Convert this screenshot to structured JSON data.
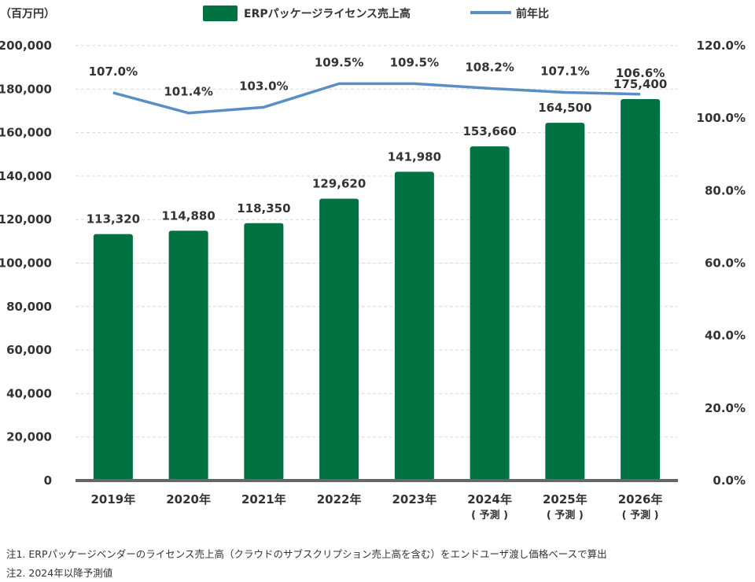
{
  "chart_data": {
    "type": "bar",
    "y_unit_label": "（百万円）",
    "categories": [
      "2019年",
      "2020年",
      "2021年",
      "2022年",
      "2023年",
      "2024年",
      "2025年",
      "2026年"
    ],
    "category_sublabels": [
      "",
      "",
      "",
      "",
      "",
      "( 予測 )",
      "( 予測 )",
      "( 予測 )"
    ],
    "series": [
      {
        "name": "ERPパッケージライセンス売上高",
        "type": "bar",
        "axis": "left",
        "color": "#007140",
        "values": [
          113320,
          114880,
          118350,
          129620,
          141980,
          153660,
          164500,
          175400
        ],
        "value_labels": [
          "113,320",
          "114,880",
          "118,350",
          "129,620",
          "141,980",
          "153,660",
          "164,500",
          "175,400"
        ]
      },
      {
        "name": "前年比",
        "type": "line",
        "axis": "right",
        "color": "#5b8ec4",
        "values": [
          107.0,
          101.4,
          103.0,
          109.5,
          109.5,
          108.2,
          107.1,
          106.6
        ],
        "value_labels": [
          "107.0%",
          "101.4%",
          "103.0%",
          "109.5%",
          "109.5%",
          "108.2%",
          "107.1%",
          "106.6%"
        ]
      }
    ],
    "y_left": {
      "range": [
        0,
        200000
      ],
      "ticks": [
        0,
        20000,
        40000,
        60000,
        80000,
        100000,
        120000,
        140000,
        160000,
        180000,
        200000
      ],
      "tick_labels": [
        "0",
        "20,000",
        "40,000",
        "60,000",
        "80,000",
        "100,000",
        "120,000",
        "140,000",
        "160,000",
        "180,000",
        "200,000"
      ]
    },
    "y_right": {
      "ticks": [
        0,
        20,
        40,
        60,
        80,
        100,
        120
      ],
      "tick_labels": [
        "0.0%",
        "20.0%",
        "40.0%",
        "60.0%",
        "80.0%",
        "100.0%",
        "120.0%"
      ],
      "line_value_range": [
        0,
        120
      ]
    },
    "grid": "horizontal-dashed",
    "legend": "top-center"
  },
  "notes": [
    "注1. ERPパッケージベンダーのライセンス売上高（クラウドのサブスクリプション売上高を含む）をエンドユーザ渡し価格ベースで算出",
    "注2. 2024年以降予測値"
  ]
}
